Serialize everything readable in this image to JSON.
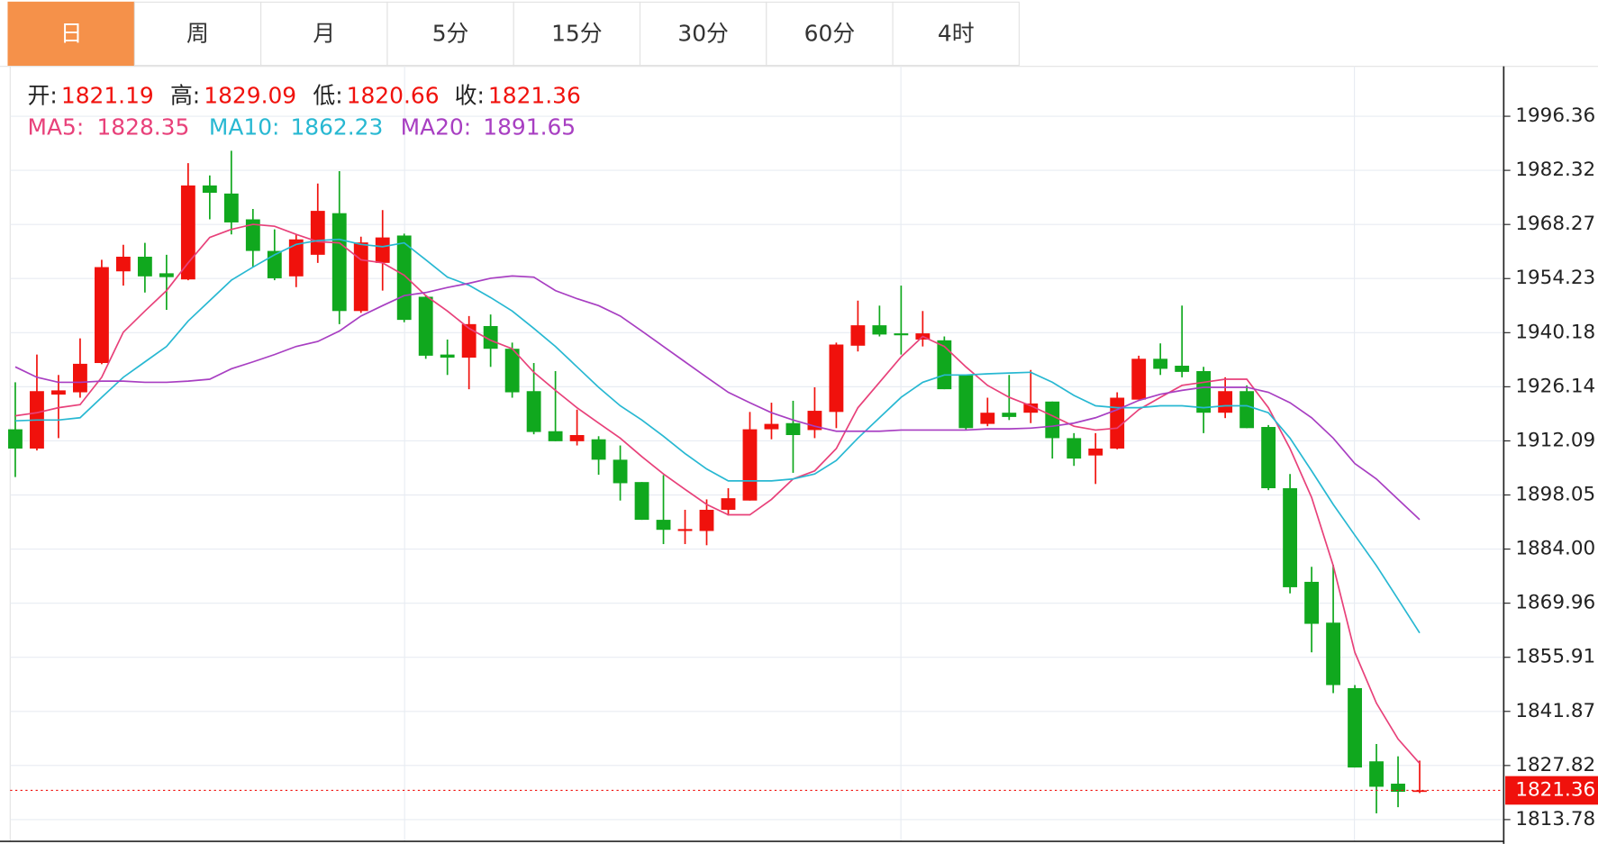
{
  "tabs": [
    "日",
    "周",
    "月",
    "5分",
    "15分",
    "30分",
    "60分",
    "4时"
  ],
  "active_tab": 0,
  "chart_data": {
    "type": "candlestick",
    "summary_labels": [
      "开:",
      "高:",
      "低:",
      "收:"
    ],
    "up_color": "#f0110c",
    "down_color": "#10a81e",
    "open": [
      1915.1,
      1910.1,
      1924.1,
      1924.7,
      1932.3,
      1956.1,
      1959.9,
      1955.6,
      1954.0,
      1978.4,
      1976.3,
      1969.6,
      1961.4,
      1954.8,
      1960.4,
      1971.2,
      1945.8,
      1958.3,
      1965.4,
      1949.5,
      1934.5,
      1933.7,
      1941.9,
      1936.0,
      1925.0,
      1914.6,
      1912.0,
      1912.5,
      1907.2,
      1901.4,
      1891.6,
      1888.7,
      1888.7,
      1894.2,
      1896.6,
      1915.1,
      1916.7,
      1914.9,
      1919.6,
      1936.8,
      1942.1,
      1940.0,
      1938.4,
      1938.2,
      1929.2,
      1916.5,
      1919.4,
      1919.4,
      1922.3,
      1912.8,
      1908.3,
      1910.1,
      1922.8,
      1933.4,
      1931.6,
      1930.2,
      1919.4,
      1925.0,
      1915.7,
      1899.8,
      1875.5,
      1864.9,
      1847.9,
      1828.9,
      1823.1,
      1821.19
    ],
    "high": [
      1927.3,
      1934.5,
      1929.2,
      1938.7,
      1959.1,
      1963.0,
      1963.5,
      1960.4,
      1984.2,
      1981.0,
      1987.4,
      1972.3,
      1967.0,
      1965.7,
      1978.9,
      1982.1,
      1965.1,
      1972.0,
      1965.9,
      1950.0,
      1938.4,
      1944.5,
      1944.9,
      1937.6,
      1932.3,
      1930.2,
      1920.2,
      1913.3,
      1910.9,
      1901.4,
      1903.2,
      1894.2,
      1896.9,
      1899.8,
      1919.6,
      1922.0,
      1922.5,
      1926.0,
      1937.6,
      1948.5,
      1947.2,
      1952.4,
      1945.8,
      1939.2,
      1929.2,
      1923.3,
      1929.2,
      1930.5,
      1922.3,
      1914.1,
      1914.1,
      1924.7,
      1934.2,
      1937.4,
      1947.2,
      1931.3,
      1928.6,
      1926.5,
      1916.2,
      1903.5,
      1879.4,
      1879.9,
      1848.7,
      1833.4,
      1830.2,
      1829.09
    ],
    "low": [
      1902.7,
      1909.6,
      1912.8,
      1923.3,
      1932.0,
      1952.4,
      1950.6,
      1946.1,
      1953.8,
      1969.6,
      1965.7,
      1957.2,
      1953.8,
      1952.0,
      1958.3,
      1942.4,
      1945.3,
      1951.1,
      1942.9,
      1933.4,
      1929.2,
      1925.5,
      1931.3,
      1923.3,
      1913.8,
      1912.0,
      1910.9,
      1903.3,
      1896.6,
      1891.6,
      1885.3,
      1885.3,
      1885.0,
      1892.7,
      1896.6,
      1912.5,
      1903.8,
      1912.8,
      1915.4,
      1935.3,
      1939.2,
      1934.5,
      1936.6,
      1925.5,
      1914.9,
      1915.9,
      1917.5,
      1916.7,
      1907.5,
      1905.6,
      1900.9,
      1909.9,
      1922.8,
      1929.2,
      1928.6,
      1914.1,
      1918.0,
      1915.4,
      1899.3,
      1872.5,
      1857.2,
      1846.6,
      1827.3,
      1815.4,
      1817.0,
      1820.66
    ],
    "close": [
      1910.1,
      1925.0,
      1925.2,
      1932.1,
      1957.2,
      1959.9,
      1954.8,
      1954.6,
      1978.4,
      1976.5,
      1968.8,
      1961.4,
      1954.3,
      1964.4,
      1971.8,
      1945.8,
      1963.6,
      1964.9,
      1943.5,
      1934.2,
      1933.7,
      1942.4,
      1936.0,
      1924.7,
      1914.4,
      1912.0,
      1913.6,
      1907.2,
      1901.1,
      1891.6,
      1889.0,
      1889.2,
      1894.2,
      1897.2,
      1915.1,
      1916.5,
      1913.6,
      1919.9,
      1937.1,
      1942.1,
      1939.7,
      1939.5,
      1940.0,
      1925.5,
      1915.4,
      1919.4,
      1918.3,
      1921.8,
      1912.8,
      1907.5,
      1910.1,
      1923.3,
      1933.4,
      1930.8,
      1930.0,
      1919.4,
      1925.0,
      1915.4,
      1899.8,
      1874.1,
      1864.6,
      1848.7,
      1827.3,
      1822.3,
      1821.0,
      1821.36
    ],
    "series": [
      {
        "name": "MA5:",
        "color": "#e8417a",
        "values": [
          1918.6,
          1919.4,
          1920.7,
          1921.5,
          1928.6,
          1940.3,
          1945.8,
          1951.1,
          1958.3,
          1964.9,
          1967.0,
          1968.3,
          1967.8,
          1965.7,
          1963.8,
          1963.5,
          1959.1,
          1958.3,
          1955.1,
          1949.8,
          1945.8,
          1941.3,
          1938.2,
          1936.0,
          1929.9,
          1925.2,
          1920.7,
          1916.7,
          1912.8,
          1908.0,
          1903.5,
          1899.5,
          1895.6,
          1892.9,
          1892.9,
          1896.9,
          1902.2,
          1904.3,
          1910.1,
          1920.7,
          1927.3,
          1933.9,
          1939.2,
          1936.6,
          1931.3,
          1926.5,
          1923.4,
          1921.2,
          1918.6,
          1915.9,
          1914.9,
          1915.4,
          1920.2,
          1923.4,
          1926.5,
          1927.3,
          1928.1,
          1928.1,
          1920.7,
          1910.1,
          1897.4,
          1879.7,
          1857.2,
          1844.0,
          1834.7,
          1828.35
        ]
      },
      {
        "name": "MA10:",
        "color": "#28b8d2",
        "values": [
          1917.3,
          1917.5,
          1917.5,
          1918.1,
          1923.4,
          1928.6,
          1932.6,
          1936.6,
          1943.2,
          1948.5,
          1953.8,
          1957.2,
          1960.4,
          1963.1,
          1964.1,
          1964.4,
          1963.1,
          1962.5,
          1963.5,
          1959.1,
          1954.6,
          1952.5,
          1949.3,
          1945.8,
          1941.3,
          1936.6,
          1931.3,
          1926.0,
          1921.2,
          1917.5,
          1913.3,
          1908.8,
          1904.8,
          1901.7,
          1901.7,
          1901.7,
          1902.2,
          1903.5,
          1907.0,
          1912.8,
          1918.1,
          1923.4,
          1927.3,
          1929.2,
          1929.2,
          1929.5,
          1929.7,
          1929.9,
          1927.3,
          1923.9,
          1921.2,
          1920.7,
          1920.7,
          1921.2,
          1921.2,
          1920.7,
          1921.2,
          1921.2,
          1919.4,
          1912.8,
          1904.3,
          1895.6,
          1887.6,
          1879.7,
          1871.0,
          1862.23
        ]
      },
      {
        "name": "MA20:",
        "color": "#a83fc2",
        "values": [
          1931.3,
          1928.6,
          1927.3,
          1927.3,
          1927.6,
          1927.6,
          1927.3,
          1927.3,
          1927.6,
          1928.1,
          1930.8,
          1932.6,
          1934.5,
          1936.6,
          1937.9,
          1940.6,
          1944.5,
          1947.2,
          1949.8,
          1950.6,
          1951.9,
          1953.0,
          1954.3,
          1954.9,
          1954.6,
          1951.1,
          1949.0,
          1947.2,
          1944.5,
          1940.6,
          1936.6,
          1932.6,
          1928.6,
          1924.7,
          1922.0,
          1919.4,
          1917.5,
          1915.9,
          1914.6,
          1914.6,
          1914.6,
          1914.9,
          1914.9,
          1914.9,
          1914.9,
          1915.2,
          1915.2,
          1915.4,
          1915.9,
          1916.7,
          1918.1,
          1920.2,
          1922.6,
          1924.2,
          1925.2,
          1926.0,
          1926.0,
          1926.0,
          1924.7,
          1922.0,
          1918.1,
          1912.8,
          1906.2,
          1902.2,
          1896.9,
          1891.65
        ]
      }
    ],
    "ylim": [
      1808.26,
      2009.32
    ],
    "yticks": [
      1813.78,
      1827.82,
      1841.87,
      1855.91,
      1869.96,
      {
        "value": 1884,
        "label": "1884.00"
      },
      1898.05,
      1912.09,
      1926.14,
      1940.18,
      1954.23,
      1968.27,
      1982.32,
      1996.36
    ],
    "grid": true
  }
}
